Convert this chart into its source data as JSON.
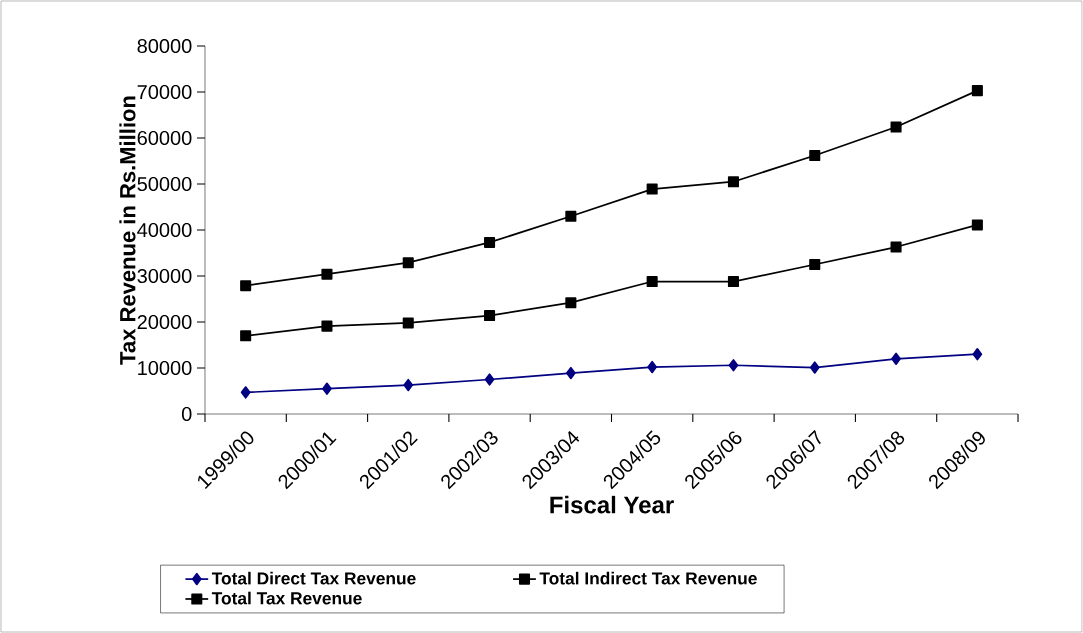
{
  "chart_data": {
    "type": "line",
    "xlabel": "Fiscal Year",
    "ylabel": "Tax Revenue in Rs.Million",
    "categories": [
      "1999/00",
      "2000/01",
      "2001/02",
      "2002/03",
      "2003/04",
      "2004/05",
      "2005/06",
      "2006/07",
      "2007/08",
      "2008/09"
    ],
    "series": [
      {
        "name": "Total Direct Tax Revenue",
        "color": "#000080",
        "marker": "diamond",
        "values": [
          4700,
          5500,
          6300,
          7500,
          8900,
          10200,
          10600,
          10100,
          12000,
          13000
        ]
      },
      {
        "name": "Total Indirect Tax Revenue",
        "color": "#000000",
        "marker": "square",
        "values": [
          17000,
          19100,
          19800,
          21400,
          24200,
          28800,
          28800,
          32500,
          36300,
          41100
        ]
      },
      {
        "name": "Total Tax Revenue",
        "color": "#000000",
        "marker": "square",
        "values": [
          27900,
          30400,
          32900,
          37300,
          43000,
          48900,
          50500,
          56200,
          62400,
          70300
        ]
      }
    ],
    "ylim": [
      0,
      80000
    ],
    "yticks": [
      0,
      10000,
      20000,
      30000,
      40000,
      50000,
      60000,
      70000,
      80000
    ],
    "grid": false,
    "legend": "bottom"
  }
}
